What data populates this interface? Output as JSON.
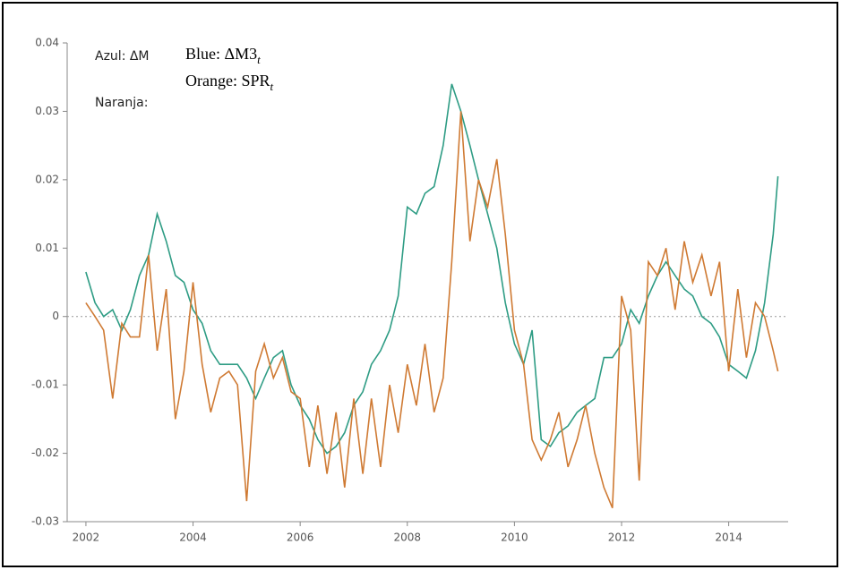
{
  "chart_data": {
    "type": "line",
    "annotations": [
      {
        "text": "Azul: ΔM"
      },
      {
        "text": "Naranja:"
      },
      {
        "text": "Blue: ΔM3",
        "subscript": "t"
      },
      {
        "text": "Orange: SPR",
        "subscript": "t"
      }
    ],
    "x": [
      2002,
      2002.17,
      2002.33,
      2002.5,
      2002.67,
      2002.83,
      2003,
      2003.17,
      2003.33,
      2003.5,
      2003.67,
      2003.83,
      2004,
      2004.17,
      2004.33,
      2004.5,
      2004.67,
      2004.83,
      2005,
      2005.17,
      2005.33,
      2005.5,
      2005.67,
      2005.83,
      2006,
      2006.17,
      2006.33,
      2006.5,
      2006.67,
      2006.83,
      2007,
      2007.17,
      2007.33,
      2007.5,
      2007.67,
      2007.83,
      2008,
      2008.17,
      2008.33,
      2008.5,
      2008.67,
      2008.83,
      2009,
      2009.17,
      2009.33,
      2009.5,
      2009.67,
      2009.83,
      2010,
      2010.17,
      2010.33,
      2010.5,
      2010.67,
      2010.83,
      2011,
      2011.17,
      2011.33,
      2011.5,
      2011.67,
      2011.83,
      2012,
      2012.17,
      2012.33,
      2012.5,
      2012.67,
      2012.83,
      2013,
      2013.17,
      2013.33,
      2013.5,
      2013.67,
      2013.83,
      2014,
      2014.17,
      2014.33,
      2014.5,
      2014.67,
      2014.83,
      2014.92
    ],
    "series": [
      {
        "name": "ΔM3",
        "color": "#2e9c84",
        "values": [
          0.0065,
          0.002,
          0.0,
          0.001,
          -0.002,
          0.001,
          0.006,
          0.009,
          0.015,
          0.011,
          0.006,
          0.005,
          0.001,
          -0.001,
          -0.005,
          -0.007,
          -0.007,
          -0.007,
          -0.009,
          -0.012,
          -0.009,
          -0.006,
          -0.005,
          -0.01,
          -0.013,
          -0.015,
          -0.018,
          -0.02,
          -0.019,
          -0.017,
          -0.013,
          -0.011,
          -0.007,
          -0.005,
          -0.002,
          0.003,
          0.016,
          0.015,
          0.018,
          0.019,
          0.025,
          0.034,
          0.03,
          0.025,
          0.02,
          0.015,
          0.01,
          0.002,
          -0.004,
          -0.007,
          -0.002,
          -0.018,
          -0.019,
          -0.017,
          -0.016,
          -0.014,
          -0.013,
          -0.012,
          -0.006,
          -0.006,
          -0.004,
          0.001,
          -0.001,
          0.003,
          0.006,
          0.008,
          0.006,
          0.004,
          0.003,
          0.0,
          -0.001,
          -0.003,
          -0.007,
          -0.008,
          -0.009,
          -0.005,
          0.002,
          0.012,
          0.0205
        ]
      },
      {
        "name": "SPR",
        "color": "#cf7a33",
        "values": [
          0.002,
          0.0,
          -0.002,
          -0.012,
          -0.001,
          -0.003,
          -0.003,
          0.009,
          -0.005,
          0.004,
          -0.015,
          -0.008,
          0.005,
          -0.007,
          -0.014,
          -0.009,
          -0.008,
          -0.01,
          -0.027,
          -0.008,
          -0.004,
          -0.009,
          -0.006,
          -0.011,
          -0.012,
          -0.022,
          -0.013,
          -0.023,
          -0.014,
          -0.025,
          -0.012,
          -0.023,
          -0.012,
          -0.022,
          -0.01,
          -0.017,
          -0.007,
          -0.013,
          -0.004,
          -0.014,
          -0.009,
          0.008,
          0.03,
          0.011,
          0.02,
          0.016,
          0.023,
          0.012,
          -0.002,
          -0.007,
          -0.018,
          -0.021,
          -0.018,
          -0.014,
          -0.022,
          -0.018,
          -0.013,
          -0.02,
          -0.025,
          -0.028,
          0.003,
          -0.002,
          -0.024,
          0.008,
          0.006,
          0.01,
          0.001,
          0.011,
          0.005,
          0.009,
          0.003,
          0.008,
          -0.008,
          0.004,
          -0.006,
          0.002,
          0.0,
          -0.005,
          -0.008
        ]
      }
    ],
    "xlim": [
      2001.65,
      2015.11
    ],
    "xticks": [
      2002,
      2004,
      2006,
      2008,
      2010,
      2012,
      2014
    ],
    "ylim": [
      -0.03,
      0.04
    ],
    "yticks": [
      0.04,
      0.03,
      0.02,
      0.01,
      0,
      -0.01,
      -0.02,
      -0.03
    ],
    "zero_line": true
  }
}
